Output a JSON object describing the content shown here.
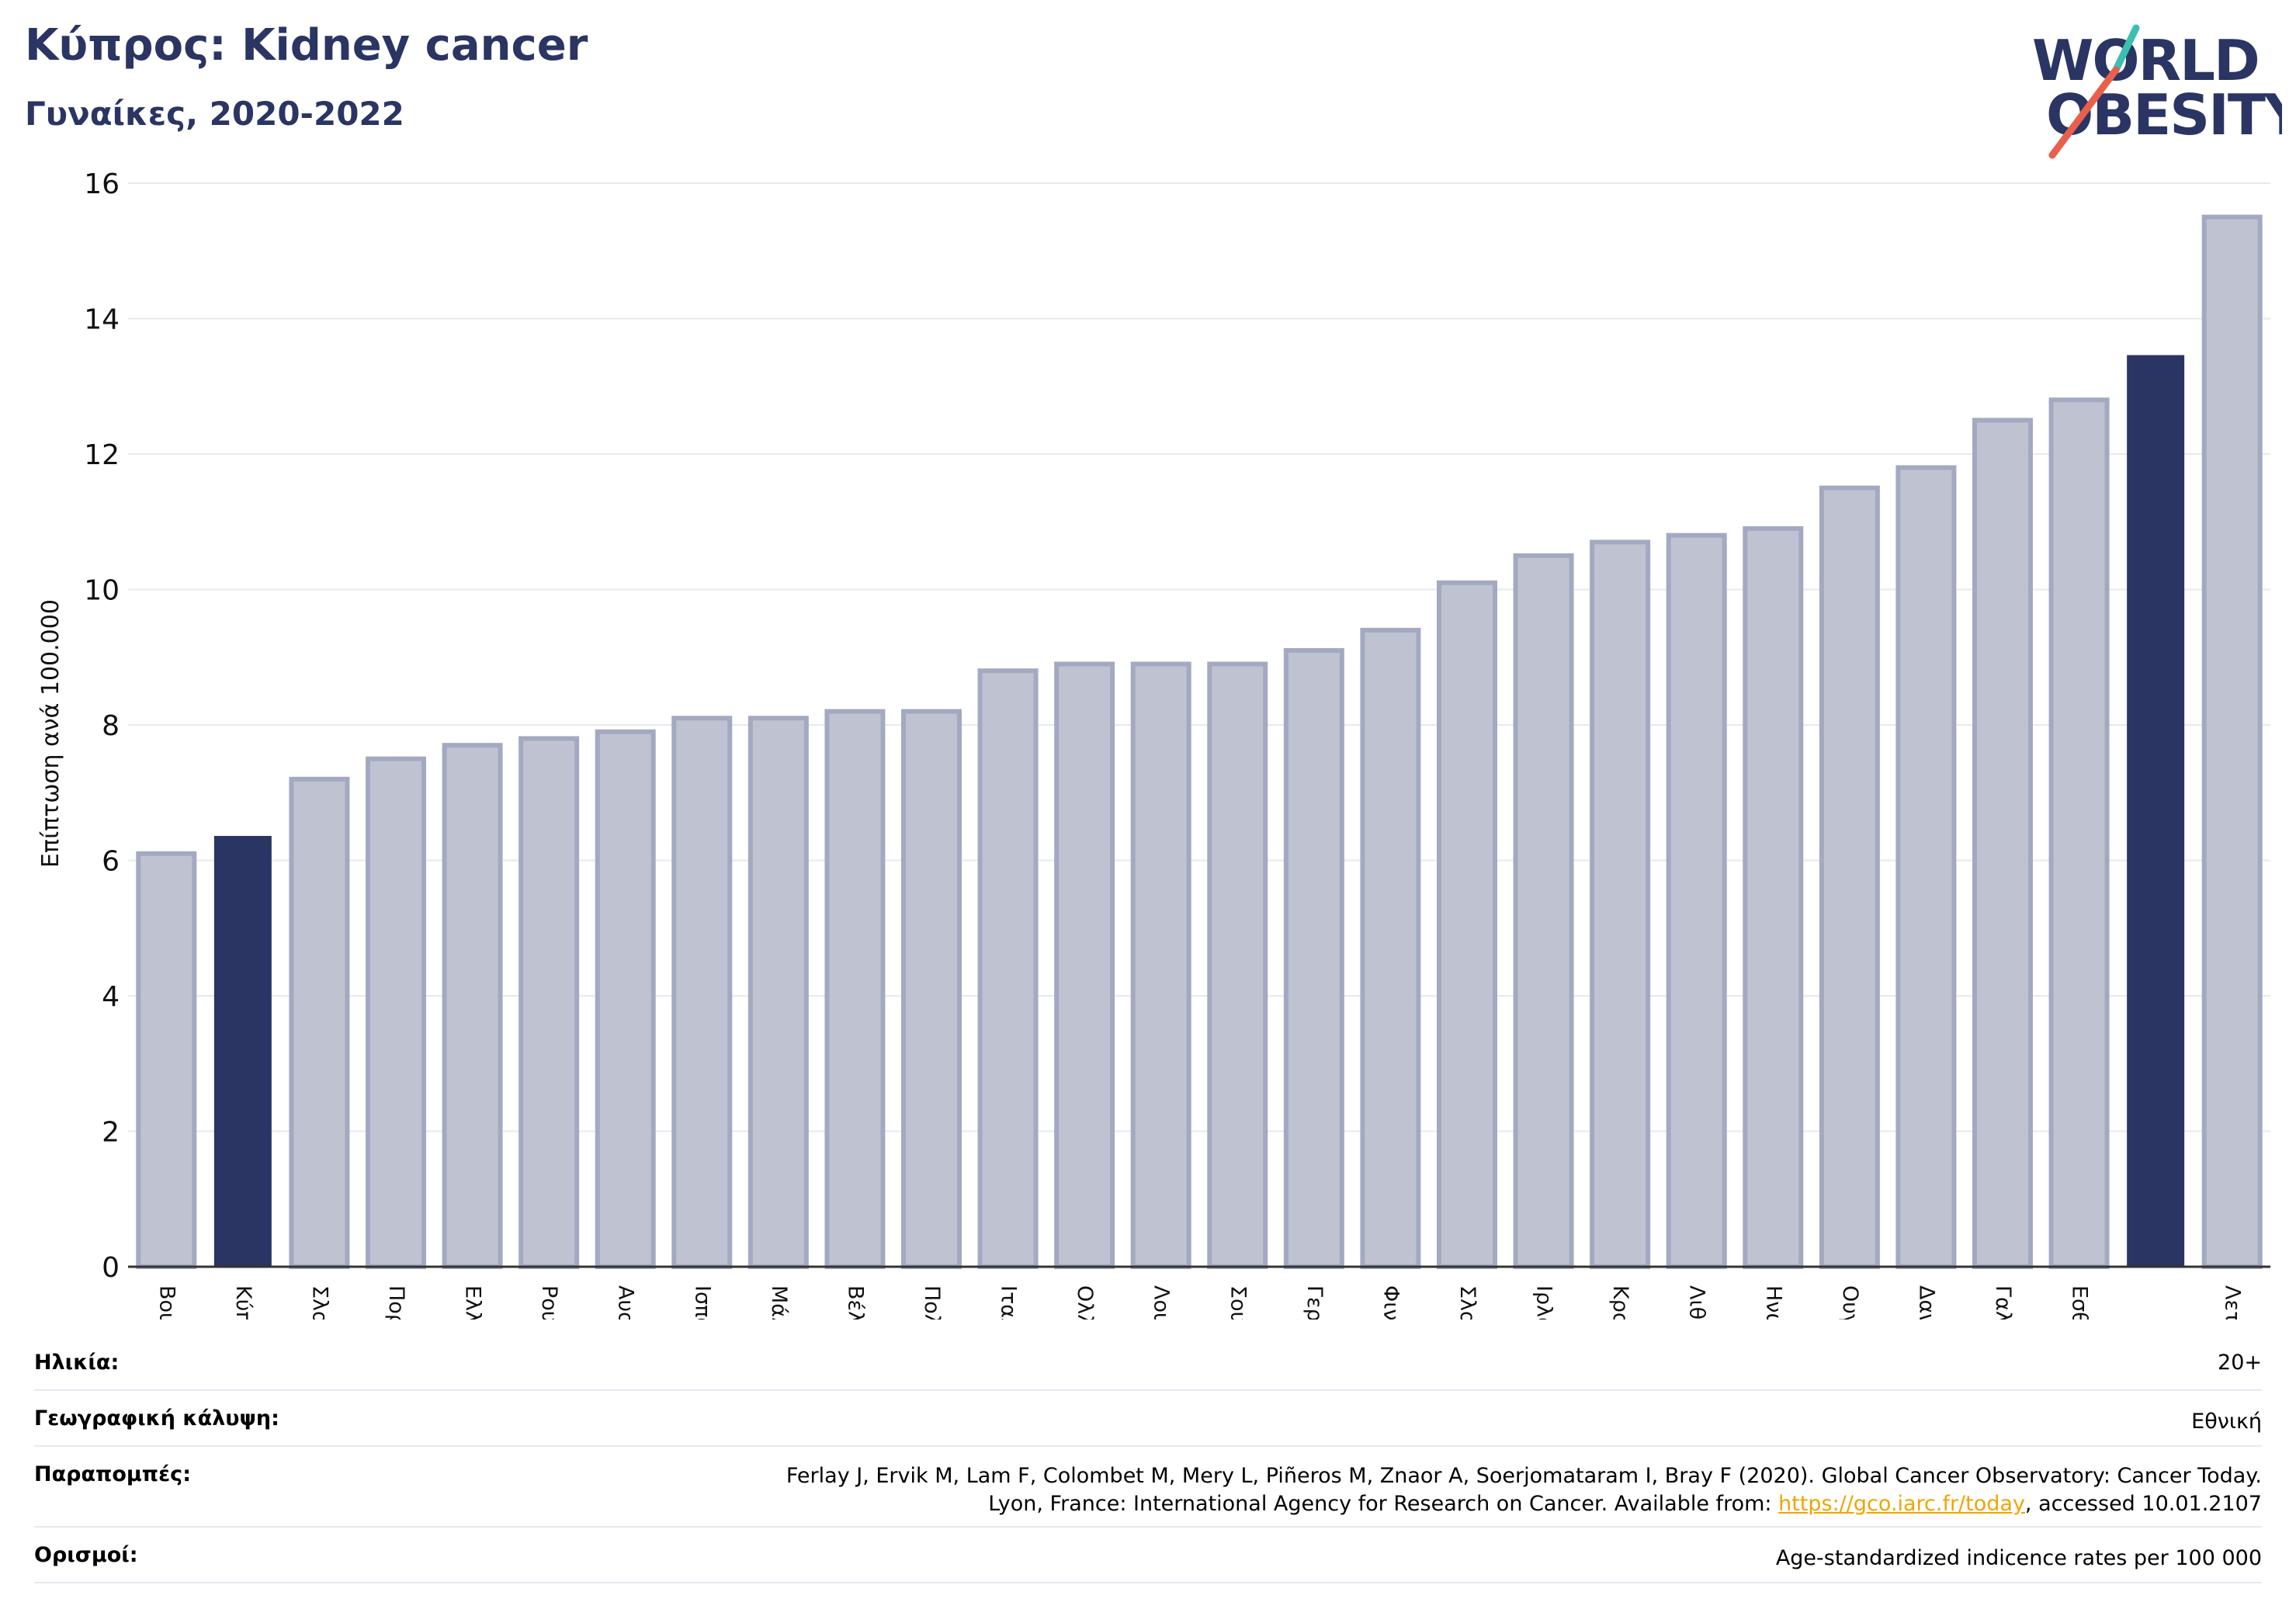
{
  "title": "Κύπρος: Kidney cancer",
  "subtitle": "Γυναίκες, 2020-2022",
  "logo": {
    "line1": "WORLD",
    "line2": "OBESITY",
    "colors": [
      "#2a3563",
      "#e8604c",
      "#3bbfb0"
    ]
  },
  "colors": {
    "bar": "#bfc3d1",
    "bar_edge": "#a3a9c1",
    "highlight": "#2a3563",
    "axis": "#333333",
    "grid": "#e8e9f0"
  },
  "chart_data": {
    "type": "bar",
    "title": "Κύπρος: Kidney cancer",
    "subtitle": "Γυναίκες, 2020-2022",
    "ylabel": "Επίπτωση ανά 100.000",
    "xlabel": "",
    "ylim": [
      0,
      16
    ],
    "yticks": [
      0,
      2,
      4,
      6,
      8,
      10,
      12,
      14,
      16
    ],
    "grid": true,
    "categories": [
      "Βουλγαρία",
      "Κύπρος",
      "Σλοβενία",
      "Πορτογαλία",
      "Ελλάδα",
      "Ρουμανία",
      "Αυστρία",
      "Ισπανία",
      "Μάλτα",
      "Βέλγιο",
      "Πολωνία",
      "Ιταλία",
      "Ολλανδία",
      "Λουξεμβούργο",
      "Σουηδία",
      "Γερμανία",
      "Φινλανδία",
      "Σλοβακία",
      "Ιρλανδία",
      "Κροατία",
      "Λιθουανία",
      "Ηνωμένο Βασίλειο",
      "Ουγγαρία",
      "Δανία",
      "Γαλλία",
      "Εσθονία",
      "",
      "Λετονία"
    ],
    "values": [
      6.1,
      6.35,
      7.2,
      7.5,
      7.7,
      7.8,
      7.9,
      8.1,
      8.1,
      8.2,
      8.2,
      8.8,
      8.9,
      8.9,
      8.9,
      9.1,
      9.4,
      10.1,
      10.5,
      10.7,
      10.8,
      10.9,
      11.5,
      11.8,
      12.5,
      12.8,
      13.45,
      15.5
    ],
    "highlight": [
      1,
      26
    ]
  },
  "info": [
    {
      "key": "Ηλικία:",
      "value": "20+"
    },
    {
      "key": "Γεωγραφική κάλυψη:",
      "value": "Εθνική"
    },
    {
      "key": "Παραπομπές:",
      "line1": "Ferlay J, Ervik M, Lam F, Colombet M, Mery L, Piñeros M, Znaor A, Soerjomataram I, Bray F (2020). Global Cancer Observatory: Cancer Today.",
      "line2_pre": "Lyon, France: International Agency for Research on Cancer. Available from: ",
      "link": "https://gco.iarc.fr/today",
      "line2_post": ", accessed 10.01.2107"
    },
    {
      "key": "Ορισμοί:",
      "value": "Age-standardized indicence rates per 100 000"
    }
  ]
}
